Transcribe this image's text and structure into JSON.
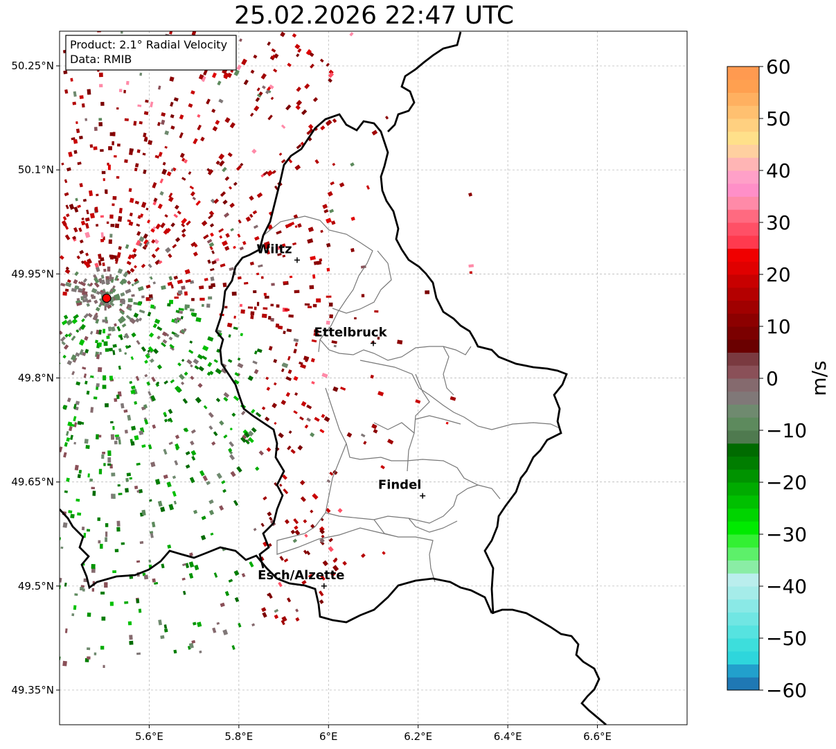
{
  "title": "25.02.2026 22:47 UTC",
  "info_box": {
    "product": "Product: 2.1° Radial Velocity",
    "source": "Data: RMIB"
  },
  "axes": {
    "lon_ticks": [
      "5.6°E",
      "5.8°E",
      "6°E",
      "6.2°E",
      "6.4°E",
      "6.6°E"
    ],
    "lat_ticks": [
      "50.25°N",
      "50.1°N",
      "49.95°N",
      "49.8°N",
      "49.65°N",
      "49.5°N",
      "49.35°N"
    ],
    "lon_range": [
      5.4,
      6.8
    ],
    "lat_range": [
      49.3,
      50.3
    ]
  },
  "cities": [
    {
      "name": "Wiltz",
      "lon": 5.93,
      "lat": 49.97
    },
    {
      "name": "Ettelbruck",
      "lon": 6.1,
      "lat": 49.85
    },
    {
      "name": "Findel",
      "lon": 6.21,
      "lat": 49.63
    },
    {
      "name": "Esch/Alzette",
      "lon": 5.99,
      "lat": 49.5
    }
  ],
  "radar_site": {
    "lon": 5.505,
    "lat": 49.915
  },
  "colorbar": {
    "label": "m/s",
    "ticks": [
      "60",
      "50",
      "40",
      "30",
      "20",
      "10",
      "0",
      "−10",
      "−20",
      "−30",
      "−40",
      "−50",
      "−60"
    ],
    "range": [
      -60,
      60
    ],
    "colors": [
      "#1f78b4",
      "#22a0cc",
      "#2ed6dc",
      "#3ddedc",
      "#56e3e0",
      "#70e6e3",
      "#8ae9e6",
      "#a5ece9",
      "#baeeed",
      "#8aeda5",
      "#5df06a",
      "#33f033",
      "#00ea00",
      "#00d400",
      "#00c000",
      "#00ab00",
      "#009300",
      "#007d00",
      "#006b00",
      "#4f7a4f",
      "#5d8a5d",
      "#6f8a6f",
      "#807878",
      "#856a6e",
      "#8a5058",
      "#7a3a40",
      "#6a0000",
      "#7b0000",
      "#8c0000",
      "#a00000",
      "#b40000",
      "#c80000",
      "#e00000",
      "#f00000",
      "#ff3a4e",
      "#ff5066",
      "#ff6a80",
      "#ff8aa8",
      "#ff8fc8",
      "#ffa0c8",
      "#ffb5b5",
      "#ffd0a0",
      "#ffe08a",
      "#ffd080",
      "#ffc070",
      "#ffb060",
      "#ffa050",
      "#ff9a50"
    ]
  }
}
